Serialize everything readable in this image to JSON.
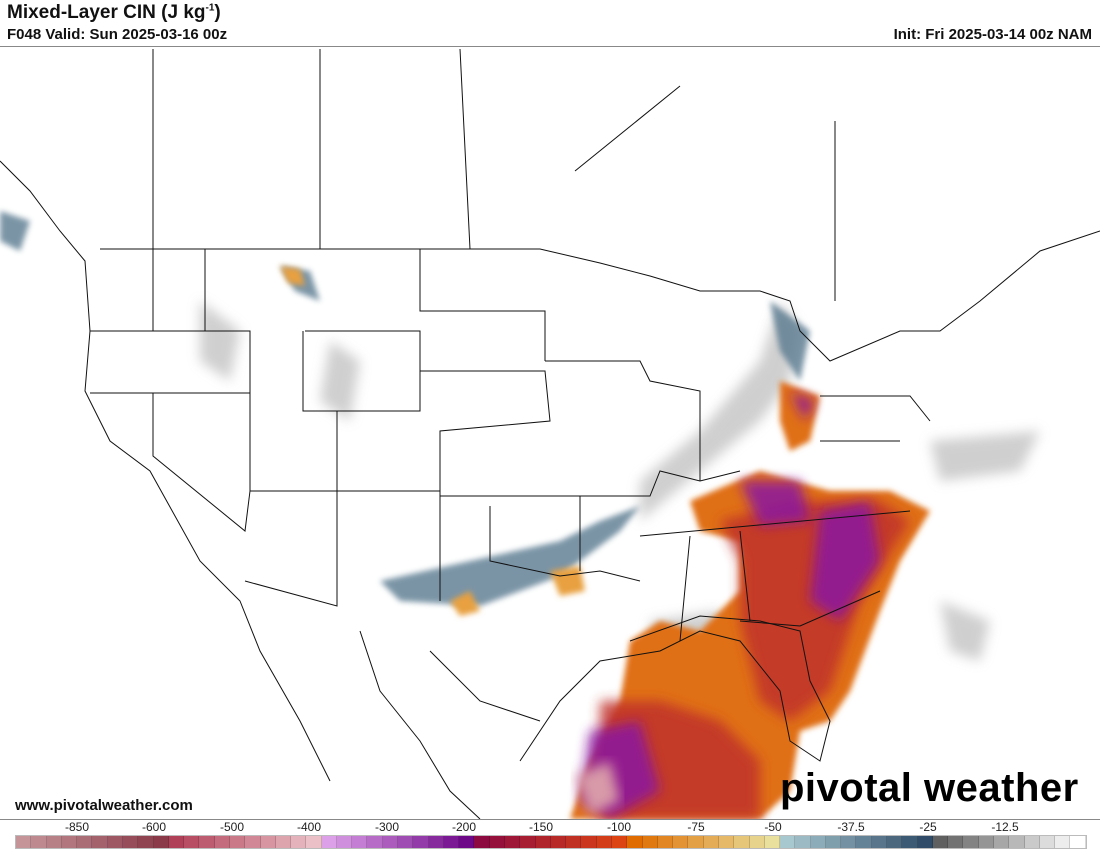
{
  "header": {
    "title": "Mixed-Layer CIN (J kg",
    "title_sup": "-1",
    "title_end": ")",
    "valid": "F048 Valid: Sun 2025-03-16 00z",
    "init": "Init: Fri 2025-03-14 00z NAM"
  },
  "footer": {
    "website": "www.pivotalweather.com",
    "logo": "pivotal weather"
  },
  "colorbar": {
    "labels": [
      "-850",
      "-600",
      "-500",
      "-400",
      "-300",
      "-200",
      "-150",
      "-100",
      "-75",
      "-50",
      "-37.5",
      "-25",
      "-12.5"
    ],
    "groups": [
      [
        "#c49499",
        "#8a3a48"
      ],
      [
        "#b04058",
        "#ebc0c6"
      ],
      [
        "#dca0e8",
        "#6e0888"
      ],
      [
        "#8c0a40",
        "#dc4414"
      ],
      [
        "#e06c00",
        "#e8e09c"
      ],
      [
        "#a8c8d0",
        "#304c68"
      ],
      [
        "#606060",
        "#ffffff"
      ]
    ]
  }
}
